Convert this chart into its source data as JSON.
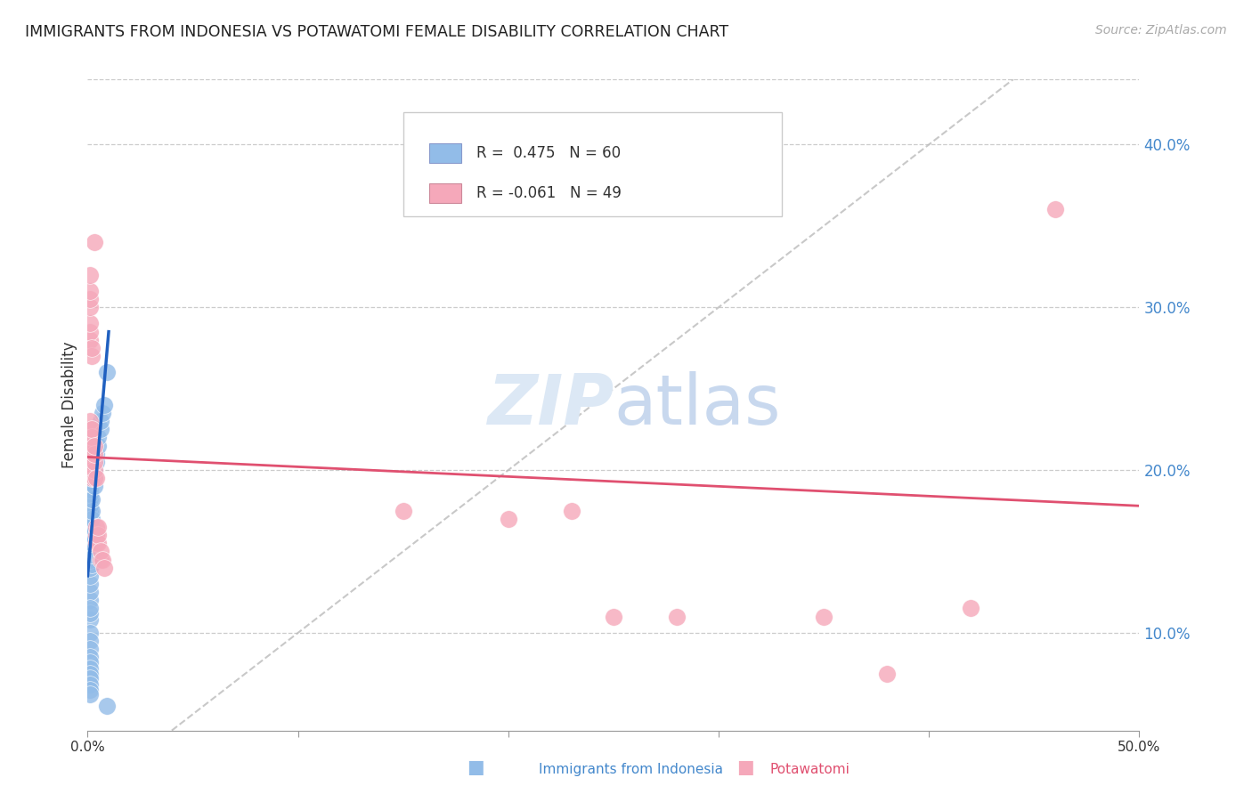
{
  "title": "IMMIGRANTS FROM INDONESIA VS POTAWATOMI FEMALE DISABILITY CORRELATION CHART",
  "source": "Source: ZipAtlas.com",
  "ylabel": "Female Disability",
  "right_ytick_vals": [
    0.1,
    0.2,
    0.3,
    0.4
  ],
  "xmin": 0.0,
  "xmax": 0.5,
  "ymin": 0.04,
  "ymax": 0.44,
  "legend_blue_r": "0.475",
  "legend_blue_n": "60",
  "legend_pink_r": "-0.061",
  "legend_pink_n": "49",
  "blue_color": "#92bce8",
  "pink_color": "#f5a8ba",
  "blue_line_color": "#2060c0",
  "pink_line_color": "#e05070",
  "diagonal_line_color": "#bbbbbb",
  "grid_color": "#cccccc",
  "title_color": "#222222",
  "right_axis_color": "#4488cc",
  "watermark_text_color": "#dce8f5",
  "blue_scatter": [
    [
      0.001,
      0.12
    ],
    [
      0.001,
      0.125
    ],
    [
      0.001,
      0.13
    ],
    [
      0.001,
      0.135
    ],
    [
      0.001,
      0.14
    ],
    [
      0.001,
      0.145
    ],
    [
      0.001,
      0.148
    ],
    [
      0.001,
      0.15
    ],
    [
      0.001,
      0.152
    ],
    [
      0.001,
      0.155
    ],
    [
      0.001,
      0.158
    ],
    [
      0.001,
      0.16
    ],
    [
      0.001,
      0.163
    ],
    [
      0.001,
      0.165
    ],
    [
      0.001,
      0.168
    ],
    [
      0.001,
      0.17
    ],
    [
      0.001,
      0.172
    ],
    [
      0.001,
      0.175
    ],
    [
      0.001,
      0.178
    ],
    [
      0.001,
      0.182
    ],
    [
      0.001,
      0.185
    ],
    [
      0.001,
      0.188
    ],
    [
      0.001,
      0.192
    ],
    [
      0.001,
      0.195
    ],
    [
      0.001,
      0.198
    ],
    [
      0.001,
      0.108
    ],
    [
      0.001,
      0.112
    ],
    [
      0.001,
      0.115
    ],
    [
      0.001,
      0.1
    ],
    [
      0.001,
      0.095
    ],
    [
      0.001,
      0.09
    ],
    [
      0.001,
      0.085
    ],
    [
      0.001,
      0.082
    ],
    [
      0.001,
      0.078
    ],
    [
      0.001,
      0.075
    ],
    [
      0.001,
      0.072
    ],
    [
      0.001,
      0.068
    ],
    [
      0.001,
      0.065
    ],
    [
      0.001,
      0.062
    ],
    [
      0.002,
      0.142
    ],
    [
      0.002,
      0.148
    ],
    [
      0.002,
      0.155
    ],
    [
      0.002,
      0.16
    ],
    [
      0.002,
      0.165
    ],
    [
      0.002,
      0.17
    ],
    [
      0.002,
      0.175
    ],
    [
      0.002,
      0.182
    ],
    [
      0.003,
      0.19
    ],
    [
      0.003,
      0.195
    ],
    [
      0.003,
      0.2
    ],
    [
      0.004,
      0.205
    ],
    [
      0.004,
      0.21
    ],
    [
      0.005,
      0.215
    ],
    [
      0.005,
      0.22
    ],
    [
      0.006,
      0.225
    ],
    [
      0.006,
      0.23
    ],
    [
      0.007,
      0.235
    ],
    [
      0.008,
      0.24
    ],
    [
      0.009,
      0.26
    ],
    [
      0.009,
      0.055
    ]
  ],
  "pink_scatter": [
    [
      0.001,
      0.2
    ],
    [
      0.001,
      0.205
    ],
    [
      0.001,
      0.21
    ],
    [
      0.001,
      0.215
    ],
    [
      0.001,
      0.22
    ],
    [
      0.001,
      0.225
    ],
    [
      0.001,
      0.23
    ],
    [
      0.001,
      0.28
    ],
    [
      0.001,
      0.285
    ],
    [
      0.001,
      0.29
    ],
    [
      0.001,
      0.3
    ],
    [
      0.001,
      0.305
    ],
    [
      0.001,
      0.31
    ],
    [
      0.001,
      0.32
    ],
    [
      0.002,
      0.195
    ],
    [
      0.002,
      0.2
    ],
    [
      0.002,
      0.205
    ],
    [
      0.002,
      0.21
    ],
    [
      0.002,
      0.215
    ],
    [
      0.002,
      0.22
    ],
    [
      0.002,
      0.225
    ],
    [
      0.002,
      0.27
    ],
    [
      0.002,
      0.275
    ],
    [
      0.003,
      0.195
    ],
    [
      0.003,
      0.2
    ],
    [
      0.003,
      0.205
    ],
    [
      0.003,
      0.21
    ],
    [
      0.003,
      0.215
    ],
    [
      0.003,
      0.34
    ],
    [
      0.004,
      0.155
    ],
    [
      0.004,
      0.16
    ],
    [
      0.004,
      0.165
    ],
    [
      0.004,
      0.195
    ],
    [
      0.005,
      0.155
    ],
    [
      0.005,
      0.16
    ],
    [
      0.005,
      0.165
    ],
    [
      0.006,
      0.145
    ],
    [
      0.006,
      0.15
    ],
    [
      0.007,
      0.145
    ],
    [
      0.008,
      0.14
    ],
    [
      0.15,
      0.175
    ],
    [
      0.2,
      0.17
    ],
    [
      0.23,
      0.175
    ],
    [
      0.25,
      0.11
    ],
    [
      0.28,
      0.11
    ],
    [
      0.35,
      0.11
    ],
    [
      0.38,
      0.075
    ],
    [
      0.42,
      0.115
    ],
    [
      0.46,
      0.36
    ]
  ],
  "blue_line_x": [
    0.0,
    0.01
  ],
  "blue_line_y": [
    0.135,
    0.285
  ],
  "pink_line_x": [
    0.0,
    0.5
  ],
  "pink_line_y": [
    0.208,
    0.178
  ],
  "diag_line_x": [
    0.04,
    0.44
  ],
  "diag_line_y": [
    0.04,
    0.44
  ]
}
